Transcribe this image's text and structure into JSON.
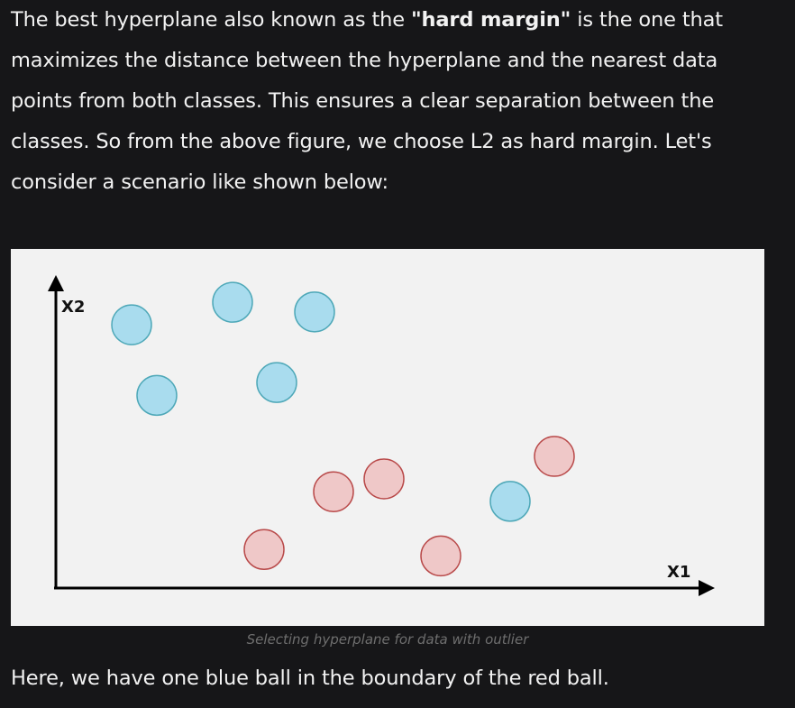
{
  "article": {
    "intro": {
      "part1": "The best hyperplane also known as the ",
      "bold": "\"hard margin\"",
      "part2": " is the one that maximizes the distance between the hyperplane and the nearest data points from both classes. This ensures a clear separation between the classes. So from the above figure, we choose L2 as hard margin. Let's consider a scenario like shown below:"
    },
    "figure": {
      "caption": "Selecting hyperplane for data with outlier"
    },
    "after": "Here, we have one blue ball in the boundary of the red ball."
  },
  "chart_data": {
    "type": "scatter",
    "xlabel": "X1",
    "ylabel": "X2",
    "grid": false,
    "xlim": [
      0,
      10
    ],
    "ylim": [
      0,
      10
    ],
    "series": [
      {
        "color": "#a9dcee",
        "edge": "#4ea8b8",
        "points": [
          [
            1.2,
            8.2
          ],
          [
            1.6,
            6.0
          ],
          [
            2.8,
            8.9
          ],
          [
            3.5,
            6.4
          ],
          [
            4.1,
            8.6
          ],
          [
            7.2,
            2.7
          ]
        ]
      },
      {
        "color": "#efc8c8",
        "edge": "#b94a4a",
        "points": [
          [
            3.3,
            1.2
          ],
          [
            4.4,
            3.0
          ],
          [
            5.2,
            3.4
          ],
          [
            6.1,
            1.0
          ],
          [
            7.9,
            4.1
          ]
        ]
      }
    ]
  },
  "colors": {
    "page_background": "#161618",
    "figure_background": "#f2f2f2",
    "text": "#f2f2f2",
    "caption": "#6e6e6e",
    "axis": "#000000"
  }
}
